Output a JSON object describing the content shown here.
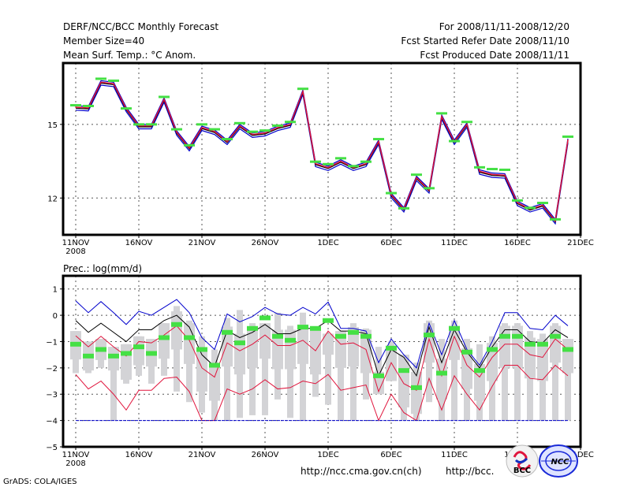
{
  "header": {
    "title": "DERF/NCC/BCC Monthly Forecast",
    "member_size": "Member Size=40",
    "top_variable": "Mean Surf. Temp.: °C Anom.",
    "period": "For 2008/11/11-2008/12/20",
    "start_date": "Fcst Started Refer Date 2008/11/10",
    "produced_date": "Fcst Produced Date 2008/11/11"
  },
  "footer": {
    "grads": "GrADS: COLA/IGES",
    "url_ncc": "http://ncc.cma.gov.cn(ch)",
    "url_bcc": "http://bcc.",
    "logo_bcc": "BCC",
    "logo_ncc": "NCC"
  },
  "colors": {
    "mean": "#e0143c",
    "black": "#000000",
    "blue": "#0000cc",
    "green": "#44e044",
    "box": "#d3d3d6"
  },
  "chart_data": [
    {
      "type": "line",
      "title": "Mean Surf. Temp.: °C Anom.",
      "xlabel": "",
      "ylabel": "",
      "ylim": [
        10.5,
        17.5
      ],
      "yticks": [
        12,
        15
      ],
      "xtick_labels": [
        "11NOV\n2008",
        "16NOV",
        "21NOV",
        "26NOV",
        "1DEC",
        "6DEC",
        "11DEC",
        "16DEC",
        "21DEC"
      ],
      "x_days": 40,
      "grid": true,
      "series": [
        {
          "name": "ensemble-mean",
          "color": "#e0143c",
          "values": [
            15.7,
            15.67,
            16.72,
            16.66,
            15.64,
            14.94,
            14.94,
            16.02,
            14.68,
            14.04,
            14.87,
            14.71,
            14.3,
            14.94,
            14.59,
            14.65,
            14.87,
            15.0,
            16.34,
            13.4,
            13.24,
            13.5,
            13.24,
            13.4,
            14.3,
            12.13,
            11.55,
            12.83,
            12.32,
            15.32,
            14.3,
            15.0,
            13.09,
            12.96,
            12.93,
            11.81,
            11.55,
            11.71,
            11.07,
            14.36
          ]
        },
        {
          "name": "observed-marker",
          "color": "#44e044",
          "values": [
            15.78,
            15.75,
            16.86,
            16.78,
            15.65,
            15.0,
            15.0,
            16.12,
            14.8,
            14.15,
            15.0,
            14.8,
            14.4,
            15.05,
            14.7,
            14.75,
            14.95,
            15.1,
            16.45,
            13.48,
            13.38,
            13.62,
            13.3,
            13.48,
            14.4,
            12.2,
            11.58,
            12.95,
            12.4,
            15.45,
            14.32,
            15.1,
            13.25,
            13.18,
            13.15,
            11.9,
            11.6,
            11.8,
            11.13,
            14.5
          ]
        }
      ]
    },
    {
      "type": "line",
      "title": "Prec.: log(mm/d)",
      "xlabel": "",
      "ylabel": "",
      "ylim": [
        -5,
        1.5
      ],
      "yticks": [
        1,
        0,
        -1,
        -2,
        -3,
        -4,
        -5
      ],
      "xtick_labels": [
        "11NOV\n2008",
        "16NOV",
        "21NOV",
        "26NOV",
        "1DEC",
        "6DEC",
        "11DEC",
        "16DEC",
        "21DEC"
      ],
      "x_days": 40,
      "grid": true,
      "box_low": [
        -2.2,
        -2.2,
        -2.0,
        -4.0,
        -2.6,
        -2.3,
        -2.6,
        -2.3,
        -2.9,
        -3.3,
        -3.7,
        -4.0,
        -4.0,
        -3.9,
        -3.8,
        -3.8,
        -3.2,
        -3.9,
        -4.0,
        -3.1,
        -3.4,
        -4.0,
        -4.0,
        -3.2,
        -3.0,
        -2.5,
        -4.0,
        -4.0,
        -3.3,
        -4.0,
        -4.0,
        -4.0,
        -4.0,
        -4.0,
        -4.0,
        -4.0,
        -4.0,
        -4.0,
        -4.0,
        -4.0
      ],
      "box_high": [
        -0.6,
        -1.0,
        -0.9,
        -1.2,
        -1.1,
        -0.8,
        -0.9,
        -0.3,
        0.35,
        -0.2,
        -0.8,
        -1.3,
        -0.1,
        0.2,
        -0.3,
        -0.3,
        0.1,
        -0.4,
        0.1,
        -0.5,
        -0.7,
        -0.6,
        -0.3,
        -0.5,
        -1.2,
        -1.0,
        -1.5,
        -1.8,
        -0.2,
        -0.9,
        -0.2,
        -0.9,
        -1.1,
        -0.8,
        -0.3,
        -0.3,
        -0.6,
        -0.7,
        -0.3,
        -0.9
      ],
      "series": [
        {
          "name": "maximum",
          "color": "#0000cc",
          "values": [
            0.55,
            0.1,
            0.52,
            0.1,
            -0.35,
            0.15,
            0.0,
            0.3,
            0.6,
            0.1,
            -0.85,
            -1.3,
            0.05,
            -0.25,
            -0.05,
            0.3,
            0.05,
            0.0,
            0.3,
            0.05,
            0.5,
            -0.5,
            -0.5,
            -0.6,
            -1.8,
            -0.9,
            -1.5,
            -2.0,
            -0.3,
            -1.5,
            -0.2,
            -1.3,
            -1.9,
            -1.0,
            0.1,
            0.1,
            -0.5,
            -0.55,
            0.0,
            -0.4
          ]
        },
        {
          "name": "upper-tercile",
          "color": "#000000",
          "values": [
            -0.2,
            -0.65,
            -0.3,
            -0.65,
            -1.0,
            -0.55,
            -0.55,
            -0.2,
            0.0,
            -0.45,
            -1.5,
            -1.95,
            -0.58,
            -0.85,
            -0.65,
            -0.35,
            -0.7,
            -0.7,
            -0.5,
            -0.5,
            -0.2,
            -0.6,
            -0.6,
            -0.7,
            -2.3,
            -1.3,
            -1.6,
            -2.3,
            -0.45,
            -1.8,
            -0.55,
            -1.4,
            -2.0,
            -1.2,
            -0.55,
            -0.55,
            -1.0,
            -1.05,
            -0.55,
            -0.85
          ]
        },
        {
          "name": "ensemble-mean",
          "color": "#e0143c",
          "values": [
            -0.78,
            -1.2,
            -0.8,
            -1.2,
            -1.55,
            -1.0,
            -1.05,
            -0.75,
            -0.4,
            -0.95,
            -2.0,
            -2.35,
            -1.05,
            -1.35,
            -1.1,
            -0.75,
            -1.15,
            -1.15,
            -0.95,
            -1.35,
            -0.6,
            -1.1,
            -1.05,
            -1.3,
            -2.9,
            -1.8,
            -2.6,
            -2.85,
            -0.9,
            -2.3,
            -0.8,
            -1.9,
            -2.35,
            -1.6,
            -1.1,
            -1.1,
            -1.5,
            -1.6,
            -0.9,
            -1.3
          ]
        },
        {
          "name": "minimum",
          "color": "#e0143c",
          "values": [
            -2.25,
            -2.8,
            -2.5,
            -3.0,
            -3.6,
            -2.85,
            -2.85,
            -2.4,
            -2.35,
            -2.9,
            -4.0,
            -4.0,
            -2.8,
            -3.0,
            -2.8,
            -2.45,
            -2.8,
            -2.75,
            -2.5,
            -2.6,
            -2.25,
            -2.85,
            -2.75,
            -2.65,
            -4.0,
            -3.0,
            -3.7,
            -4.0,
            -2.4,
            -3.6,
            -2.3,
            -3.0,
            -3.6,
            -2.7,
            -1.9,
            -1.9,
            -2.4,
            -2.45,
            -1.9,
            -2.3
          ]
        },
        {
          "name": "observed-marker",
          "color": "#44e044",
          "values": [
            -1.1,
            -1.55,
            -1.3,
            -1.55,
            -1.45,
            -1.2,
            -1.45,
            -0.85,
            -0.35,
            -0.85,
            -1.3,
            -1.9,
            -0.65,
            -1.05,
            -0.5,
            -0.1,
            -0.8,
            -0.95,
            -0.45,
            -0.5,
            -0.2,
            -0.8,
            -0.65,
            -0.8,
            -2.3,
            -1.25,
            -2.1,
            -2.75,
            -0.75,
            -2.2,
            -0.5,
            -1.4,
            -2.1,
            -1.3,
            -0.8,
            -0.8,
            -1.1,
            -1.1,
            -0.8,
            -1.3
          ]
        },
        {
          "name": "floor",
          "color": "#0000cc",
          "values": [
            -4,
            -4,
            -4,
            -4,
            -4,
            -4,
            -4,
            -4,
            -4,
            -4,
            -4,
            -4,
            -4,
            -4,
            -4,
            -4,
            -4,
            -4,
            -4,
            -4,
            -4,
            -4,
            -4,
            -4,
            -4,
            -4,
            -4,
            -4,
            -4,
            -4,
            -4,
            -4,
            -4,
            -4,
            -4,
            -4,
            -4,
            -4,
            -4,
            -4
          ]
        }
      ]
    }
  ]
}
